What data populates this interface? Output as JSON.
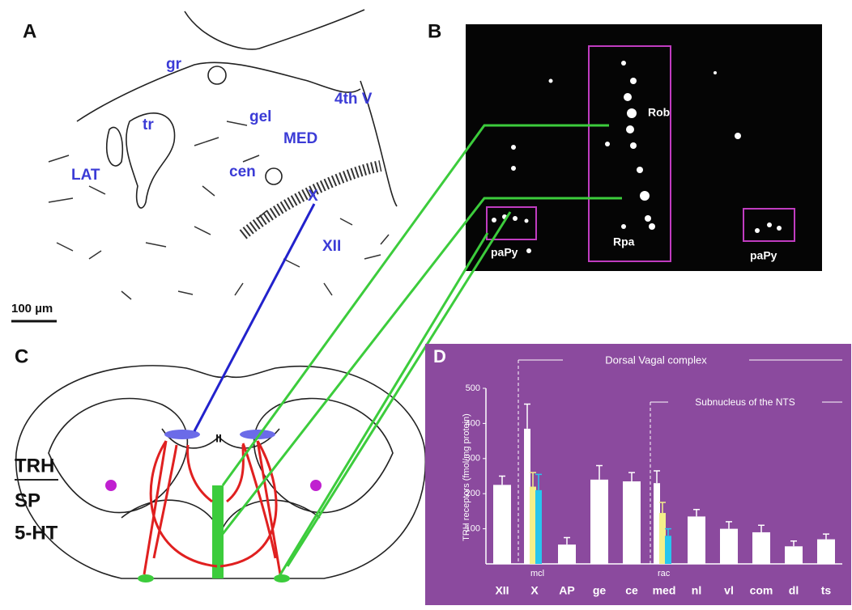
{
  "panels": {
    "a": {
      "label": "A",
      "regions": [
        "gr",
        "tr",
        "gel",
        "4th V",
        "MED",
        "cen",
        "LAT",
        "X",
        "XII"
      ],
      "scale_bar": "100 µm"
    },
    "b": {
      "label": "B",
      "regions": [
        "Rob",
        "Rpa",
        "paPy",
        "paPy"
      ]
    },
    "c": {
      "label": "C",
      "midline": "II",
      "legend": [
        "TRH",
        "SP",
        "5-HT"
      ]
    }
  },
  "chart_data": {
    "type": "bar",
    "panel_label": "D",
    "y_label": "TRH receptors (fmol/mg protein)",
    "annotations": [
      "Dorsal Vagal complex",
      "Subnucleus of the NTS",
      "mcl",
      "rac"
    ],
    "categories": [
      "XII",
      "X",
      "AP",
      "ge",
      "ce",
      "med",
      "nl",
      "vl",
      "com",
      "dl",
      "ts"
    ],
    "series": [
      {
        "color": "#ffffff",
        "values": [
          225,
          385,
          55,
          240,
          235,
          230,
          135,
          100,
          90,
          50,
          70
        ],
        "errors": [
          25,
          70,
          20,
          40,
          25,
          35,
          20,
          20,
          20,
          15,
          15
        ]
      },
      {
        "color": "#f4f08a",
        "values": [
          null,
          220,
          null,
          null,
          null,
          145,
          null,
          null,
          null,
          null,
          null
        ],
        "errors": [
          null,
          40,
          null,
          null,
          null,
          30,
          null,
          null,
          null,
          null,
          null
        ]
      },
      {
        "color": "#27c6ee",
        "values": [
          null,
          210,
          null,
          null,
          null,
          80,
          null,
          null,
          null,
          null,
          null
        ],
        "errors": [
          null,
          45,
          null,
          null,
          null,
          20,
          null,
          null,
          null,
          null,
          null
        ]
      }
    ],
    "ylim": [
      0,
      500
    ],
    "yticks": [
      100,
      200,
      300,
      400,
      500
    ],
    "grid": false
  }
}
